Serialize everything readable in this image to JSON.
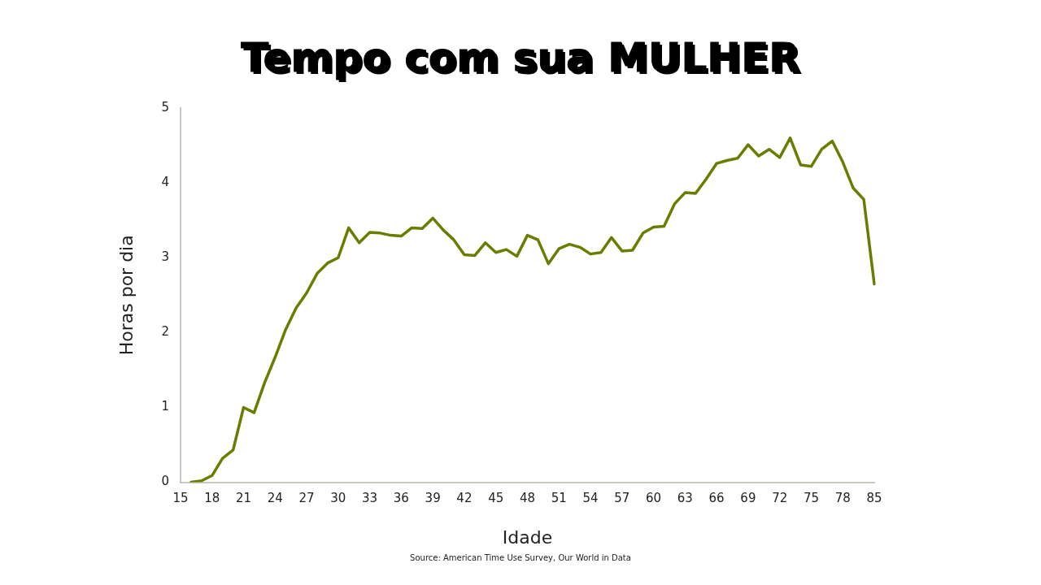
{
  "chart_data": {
    "type": "line",
    "title": "Tempo com sua MULHER",
    "xlabel": "Idade",
    "ylabel": "Horas por dia",
    "annotations": [
      "Source: American Time Use Survey, Our World in Data"
    ],
    "categories": [
      "15",
      null,
      null,
      "18",
      null,
      null,
      "21",
      null,
      null,
      "24",
      null,
      null,
      "27",
      null,
      null,
      "30",
      null,
      null,
      "33",
      null,
      null,
      "36",
      null,
      null,
      "39",
      null,
      null,
      "42",
      null,
      null,
      "45",
      null,
      null,
      "48",
      null,
      null,
      "51",
      null,
      null,
      "54",
      null,
      null,
      "57",
      null,
      null,
      "60",
      null,
      null,
      "63",
      null,
      null,
      "66",
      null,
      null,
      "69",
      null,
      null,
      "72",
      null,
      null,
      "75",
      null,
      null,
      "78",
      null,
      null,
      "85"
    ],
    "series": [
      {
        "color": "#6b7d00",
        "values": [
          null,
          0.0,
          0.02,
          0.09,
          0.32,
          0.43,
          1.0,
          0.93,
          1.33,
          1.67,
          2.04,
          2.33,
          2.53,
          2.79,
          2.93,
          3.0,
          3.4,
          3.2,
          3.34,
          3.33,
          3.3,
          3.29,
          3.4,
          3.39,
          3.53,
          3.37,
          3.24,
          3.04,
          3.03,
          3.2,
          3.07,
          3.11,
          3.02,
          3.3,
          3.24,
          2.92,
          3.12,
          3.18,
          3.14,
          3.05,
          3.07,
          3.27,
          3.09,
          3.1,
          3.33,
          3.41,
          3.42,
          3.72,
          3.87,
          3.86,
          4.05,
          4.26,
          4.3,
          4.33,
          4.51,
          4.36,
          4.45,
          4.34,
          4.6,
          4.24,
          4.22,
          4.45,
          4.56,
          4.28,
          3.93,
          3.78,
          2.65
        ]
      }
    ],
    "ylim": [
      0,
      5
    ],
    "yticks": [
      0,
      1,
      2,
      3,
      4,
      5
    ],
    "grid": false,
    "legend": false,
    "marker": "none",
    "line_style": "solid"
  }
}
